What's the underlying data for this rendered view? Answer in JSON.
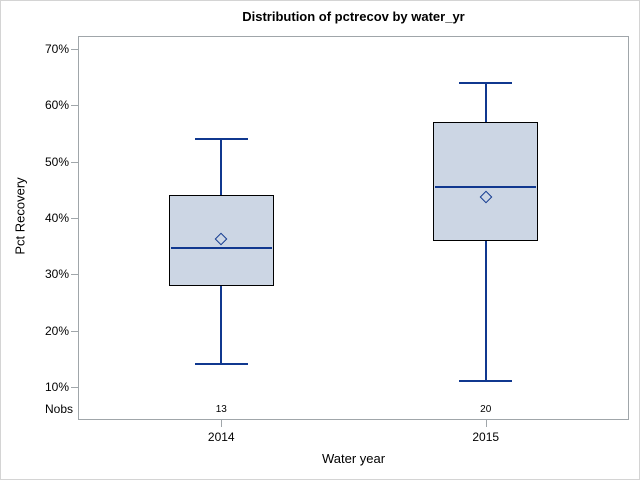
{
  "chart_data": {
    "type": "boxplot",
    "title": "Distribution of pctrecov by water_yr",
    "xlabel": "Water year",
    "ylabel": "Pct Recovery",
    "nobs_label": "Nobs",
    "categories": [
      "2014",
      "2015"
    ],
    "yticks": [
      70,
      60,
      50,
      40,
      30,
      20,
      10
    ],
    "ytick_labels": [
      "70%",
      "60%",
      "50%",
      "40%",
      "30%",
      "20%",
      "10%"
    ],
    "ylim": [
      4,
      72
    ],
    "grid": "off",
    "legend": "none",
    "series": [
      {
        "category": "2014",
        "nobs": "13",
        "whisker_low": 14,
        "q1": 28,
        "median": 34.7,
        "mean": 36.3,
        "q3": 44,
        "whisker_high": 54
      },
      {
        "category": "2015",
        "nobs": "20",
        "whisker_low": 11,
        "q1": 36,
        "median": 45.5,
        "mean": 43.8,
        "q3": 57,
        "whisker_high": 64
      }
    ],
    "colors": {
      "box_fill": "#ccd6e4",
      "box_border": "#000000",
      "line_blue": "#10388f",
      "axis_gray": "#a0a6aa",
      "outer_border": "#d4d4d4",
      "text": "#000000"
    }
  }
}
